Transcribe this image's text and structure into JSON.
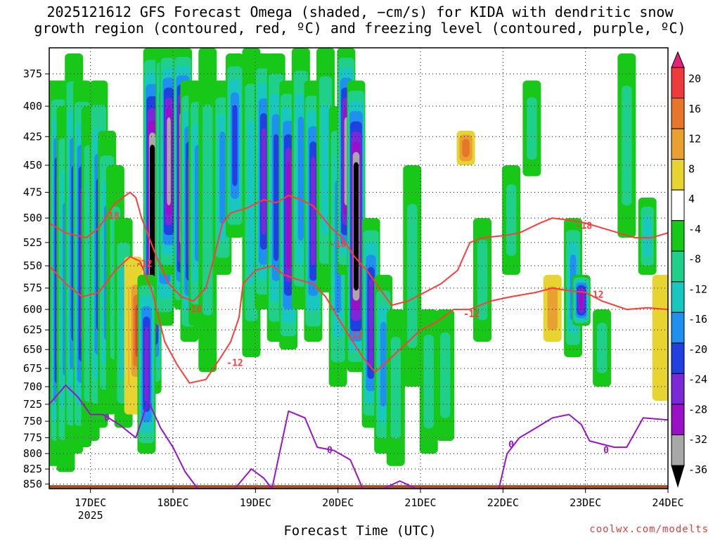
{
  "title_line1": "2025121612 GFS Forecast Omega (shaded, −cm/s) for KIDA with dendritic snow",
  "title_line2": "growth region (contoured, red, ºC) and freezing level (contoured, purple, ºC)",
  "credit": "coolwx.com/modelts",
  "chart_data": {
    "type": "heatmap",
    "xlabel": "Forecast Time (UTC)",
    "ylabel": "",
    "x_ticks": [
      "17DEC",
      "18DEC",
      "19DEC",
      "20DEC",
      "21DEC",
      "22DEC",
      "23DEC",
      "24DEC"
    ],
    "x_tick_sublabel": "2025",
    "x_range_days": [
      16.5,
      24.0
    ],
    "y_ticks": [
      375,
      400,
      425,
      450,
      475,
      500,
      525,
      550,
      575,
      600,
      625,
      650,
      675,
      700,
      725,
      750,
      775,
      800,
      825,
      850
    ],
    "y_range_hpa": [
      356,
      858
    ],
    "y_scale": "log-pressure (inverted)",
    "colorbar": {
      "ticks": [
        20,
        16,
        12,
        8,
        4,
        -4,
        -8,
        -12,
        -16,
        -20,
        -24,
        -28,
        -32,
        -36
      ],
      "levels": [
        {
          "min": 20,
          "max": 24,
          "color": "#e8207a"
        },
        {
          "min": 16,
          "max": 20,
          "color": "#ee3a3a"
        },
        {
          "min": 12,
          "max": 16,
          "color": "#e8762a"
        },
        {
          "min": 8,
          "max": 12,
          "color": "#e8a030"
        },
        {
          "min": 4,
          "max": 8,
          "color": "#e8d430"
        },
        {
          "min": -4,
          "max": 4,
          "color": "#ffffff"
        },
        {
          "min": -8,
          "max": -4,
          "color": "#18c818"
        },
        {
          "min": -12,
          "max": -8,
          "color": "#20d08a"
        },
        {
          "min": -16,
          "max": -12,
          "color": "#18c8c0"
        },
        {
          "min": -20,
          "max": -16,
          "color": "#2090f0"
        },
        {
          "min": -24,
          "max": -20,
          "color": "#2040e0"
        },
        {
          "min": -28,
          "max": -24,
          "color": "#7a28d8"
        },
        {
          "min": -32,
          "max": -28,
          "color": "#9a10c8"
        },
        {
          "min": -36,
          "max": -32,
          "color": "#a8a8a8"
        },
        {
          "min": -40,
          "max": -36,
          "color": "#000000"
        }
      ]
    },
    "omega_field": [
      {
        "t": 16.55,
        "p0": 380,
        "p1": 820,
        "v": -20
      },
      {
        "t": 16.62,
        "p0": 380,
        "p1": 810,
        "v": -28
      },
      {
        "t": 16.7,
        "p0": 400,
        "p1": 830,
        "v": -16
      },
      {
        "t": 16.8,
        "p0": 360,
        "p1": 800,
        "v": -20
      },
      {
        "t": 16.9,
        "p0": 380,
        "p1": 790,
        "v": -24
      },
      {
        "t": 17.0,
        "p0": 400,
        "p1": 780,
        "v": -12
      },
      {
        "t": 17.1,
        "p0": 380,
        "p1": 760,
        "v": -20
      },
      {
        "t": 17.2,
        "p0": 420,
        "p1": 740,
        "v": -16
      },
      {
        "t": 17.3,
        "p0": 450,
        "p1": 720,
        "v": -8
      },
      {
        "t": 17.4,
        "p0": 500,
        "p1": 760,
        "v": -12
      },
      {
        "t": 17.52,
        "p0": 540,
        "p1": 740,
        "v": 8
      },
      {
        "t": 17.58,
        "p0": 560,
        "p1": 700,
        "v": 16
      },
      {
        "t": 17.75,
        "p0": 356,
        "p1": 710,
        "v": -40
      },
      {
        "t": 17.68,
        "p0": 560,
        "p1": 800,
        "v": -24
      },
      {
        "t": 17.9,
        "p0": 356,
        "p1": 620,
        "v": -28
      },
      {
        "t": 17.95,
        "p0": 356,
        "p1": 560,
        "v": -32
      },
      {
        "t": 18.12,
        "p0": 356,
        "p1": 600,
        "v": -40
      },
      {
        "t": 18.2,
        "p0": 380,
        "p1": 640,
        "v": -24
      },
      {
        "t": 18.3,
        "p0": 380,
        "p1": 620,
        "v": -16
      },
      {
        "t": 18.42,
        "p0": 356,
        "p1": 680,
        "v": -8
      },
      {
        "t": 18.6,
        "p0": 380,
        "p1": 560,
        "v": -16
      },
      {
        "t": 18.75,
        "p0": 360,
        "p1": 520,
        "v": -20
      },
      {
        "t": 18.95,
        "p0": 356,
        "p1": 660,
        "v": -12
      },
      {
        "t": 19.1,
        "p0": 360,
        "p1": 600,
        "v": -24
      },
      {
        "t": 19.25,
        "p0": 360,
        "p1": 640,
        "v": -20
      },
      {
        "t": 19.4,
        "p0": 380,
        "p1": 650,
        "v": -28
      },
      {
        "t": 19.55,
        "p0": 356,
        "p1": 600,
        "v": -16
      },
      {
        "t": 19.7,
        "p0": 380,
        "p1": 640,
        "v": -24
      },
      {
        "t": 19.85,
        "p0": 356,
        "p1": 580,
        "v": -12
      },
      {
        "t": 20.0,
        "p0": 400,
        "p1": 700,
        "v": -16
      },
      {
        "t": 20.1,
        "p0": 356,
        "p1": 560,
        "v": -32
      },
      {
        "t": 20.22,
        "p0": 380,
        "p1": 680,
        "v": -40
      },
      {
        "t": 20.4,
        "p0": 500,
        "p1": 760,
        "v": -24
      },
      {
        "t": 20.55,
        "p0": 560,
        "p1": 800,
        "v": -16
      },
      {
        "t": 20.7,
        "p0": 600,
        "p1": 820,
        "v": -8
      },
      {
        "t": 20.9,
        "p0": 450,
        "p1": 700,
        "v": -8
      },
      {
        "t": 21.1,
        "p0": 600,
        "p1": 800,
        "v": -8
      },
      {
        "t": 21.3,
        "p0": 600,
        "p1": 780,
        "v": -8
      },
      {
        "t": 21.55,
        "p0": 420,
        "p1": 450,
        "v": 12
      },
      {
        "t": 21.75,
        "p0": 500,
        "p1": 640,
        "v": -8
      },
      {
        "t": 22.1,
        "p0": 450,
        "p1": 560,
        "v": -8
      },
      {
        "t": 22.35,
        "p0": 380,
        "p1": 460,
        "v": -8
      },
      {
        "t": 22.6,
        "p0": 560,
        "p1": 640,
        "v": 8
      },
      {
        "t": 22.85,
        "p0": 500,
        "p1": 660,
        "v": -16
      },
      {
        "t": 22.95,
        "p0": 560,
        "p1": 620,
        "v": -28
      },
      {
        "t": 23.2,
        "p0": 600,
        "p1": 700,
        "v": -8
      },
      {
        "t": 23.5,
        "p0": 360,
        "p1": 520,
        "v": -8
      },
      {
        "t": 23.75,
        "p0": 480,
        "p1": 560,
        "v": -12
      },
      {
        "t": 23.92,
        "p0": 560,
        "p1": 720,
        "v": 4
      }
    ],
    "series": [
      {
        "name": "-18",
        "color": "#ff3b3b",
        "points": [
          [
            16.5,
            505
          ],
          [
            16.7,
            515
          ],
          [
            16.95,
            520
          ],
          [
            17.1,
            510
          ],
          [
            17.3,
            485
          ],
          [
            17.48,
            475
          ],
          [
            17.55,
            480
          ],
          [
            17.62,
            500
          ],
          [
            17.8,
            540
          ],
          [
            17.95,
            570
          ],
          [
            18.1,
            585
          ],
          [
            18.25,
            590
          ],
          [
            18.4,
            575
          ],
          [
            18.5,
            540
          ],
          [
            18.6,
            505
          ],
          [
            18.7,
            495
          ],
          [
            18.9,
            490
          ],
          [
            19.1,
            482
          ],
          [
            19.25,
            485
          ],
          [
            19.4,
            478
          ],
          [
            19.55,
            482
          ],
          [
            19.7,
            488
          ],
          [
            19.82,
            500
          ],
          [
            19.92,
            510
          ],
          [
            20.05,
            520
          ],
          [
            20.2,
            540
          ],
          [
            20.35,
            555
          ],
          [
            20.5,
            575
          ],
          [
            20.65,
            595
          ],
          [
            20.85,
            590
          ],
          [
            21.05,
            580
          ],
          [
            21.25,
            570
          ],
          [
            21.45,
            555
          ],
          [
            21.6,
            525
          ],
          [
            21.75,
            520
          ],
          [
            22.0,
            518
          ],
          [
            22.2,
            515
          ],
          [
            22.45,
            505
          ],
          [
            22.6,
            500
          ],
          [
            22.8,
            502
          ],
          [
            23.0,
            505
          ],
          [
            23.2,
            510
          ],
          [
            23.4,
            515
          ],
          [
            23.6,
            520
          ],
          [
            23.8,
            520
          ],
          [
            24.0,
            515
          ]
        ]
      },
      {
        "name": "-12",
        "color": "#ff3b3b",
        "points": [
          [
            16.5,
            550
          ],
          [
            16.7,
            570
          ],
          [
            16.9,
            585
          ],
          [
            17.1,
            580
          ],
          [
            17.3,
            555
          ],
          [
            17.48,
            540
          ],
          [
            17.6,
            545
          ],
          [
            17.75,
            580
          ],
          [
            17.9,
            640
          ],
          [
            18.05,
            670
          ],
          [
            18.2,
            695
          ],
          [
            18.4,
            690
          ],
          [
            18.58,
            660
          ],
          [
            18.7,
            640
          ],
          [
            18.8,
            610
          ],
          [
            18.85,
            570
          ],
          [
            19.0,
            555
          ],
          [
            19.2,
            550
          ],
          [
            19.35,
            560
          ],
          [
            19.5,
            565
          ],
          [
            19.7,
            570
          ],
          [
            19.85,
            585
          ],
          [
            20.0,
            610
          ],
          [
            20.15,
            635
          ],
          [
            20.3,
            660
          ],
          [
            20.45,
            680
          ],
          [
            20.6,
            665
          ],
          [
            20.8,
            645
          ],
          [
            21.0,
            625
          ],
          [
            21.2,
            615
          ],
          [
            21.4,
            600
          ],
          [
            21.6,
            600
          ],
          [
            21.85,
            590
          ],
          [
            22.1,
            585
          ],
          [
            22.4,
            580
          ],
          [
            22.6,
            575
          ],
          [
            22.8,
            578
          ],
          [
            23.0,
            580
          ],
          [
            23.2,
            590
          ],
          [
            23.5,
            600
          ],
          [
            23.75,
            598
          ],
          [
            24.0,
            600
          ]
        ]
      },
      {
        "name": "0",
        "color": "#9a14c8",
        "points": [
          [
            16.5,
            725
          ],
          [
            16.7,
            698
          ],
          [
            16.85,
            715
          ],
          [
            17.0,
            740
          ],
          [
            17.15,
            740
          ],
          [
            17.35,
            755
          ],
          [
            17.55,
            775
          ],
          [
            17.7,
            720
          ],
          [
            17.85,
            760
          ],
          [
            18.0,
            790
          ],
          [
            18.15,
            830
          ],
          [
            18.3,
            858
          ],
          [
            18.55,
            858
          ],
          [
            18.75,
            858
          ],
          [
            18.95,
            825
          ],
          [
            19.1,
            840
          ],
          [
            19.2,
            858
          ],
          [
            19.4,
            735
          ],
          [
            19.6,
            745
          ],
          [
            19.75,
            790
          ],
          [
            19.95,
            795
          ],
          [
            20.15,
            810
          ],
          [
            20.3,
            858
          ],
          [
            20.55,
            858
          ],
          [
            20.75,
            845
          ],
          [
            20.95,
            858
          ],
          [
            21.25,
            858
          ],
          [
            21.65,
            858
          ],
          [
            21.95,
            858
          ],
          [
            22.05,
            800
          ],
          [
            22.2,
            775
          ],
          [
            22.4,
            760
          ],
          [
            22.6,
            745
          ],
          [
            22.8,
            740
          ],
          [
            22.95,
            755
          ],
          [
            23.05,
            780
          ],
          [
            23.2,
            785
          ],
          [
            23.35,
            790
          ],
          [
            23.5,
            790
          ],
          [
            23.7,
            745
          ],
          [
            24.0,
            748
          ]
        ]
      }
    ],
    "contour_labels": [
      {
        "text": "-18",
        "t": 17.25,
        "p": 498,
        "color": "#ff3b3b"
      },
      {
        "text": "-12",
        "t": 17.65,
        "p": 548,
        "color": "#ff3b3b"
      },
      {
        "text": "-18",
        "t": 18.25,
        "p": 600,
        "color": "#ff3b3b"
      },
      {
        "text": "-12",
        "t": 18.75,
        "p": 668,
        "color": "#ff3b3b"
      },
      {
        "text": "-18",
        "t": 20.0,
        "p": 527,
        "color": "#ff3b3b"
      },
      {
        "text": "-12",
        "t": 20.2,
        "p": 632,
        "color": "#ff3b3b"
      },
      {
        "text": "-12",
        "t": 21.62,
        "p": 606,
        "color": "#ff3b3b"
      },
      {
        "text": "-18",
        "t": 22.98,
        "p": 508,
        "color": "#ff3b3b"
      },
      {
        "text": "-12",
        "t": 23.12,
        "p": 583,
        "color": "#ff3b3b"
      },
      {
        "text": "0",
        "t": 17.2,
        "p": 745,
        "color": "#9a14c8"
      },
      {
        "text": "0",
        "t": 19.9,
        "p": 795,
        "color": "#9a14c8"
      },
      {
        "text": "0",
        "t": 22.1,
        "p": 786,
        "color": "#9a14c8"
      },
      {
        "text": "0",
        "t": 23.25,
        "p": 795,
        "color": "#9a14c8"
      }
    ],
    "terrain": {
      "color": "#a0522d",
      "pressure_top": 852
    },
    "grid": "dotted"
  }
}
